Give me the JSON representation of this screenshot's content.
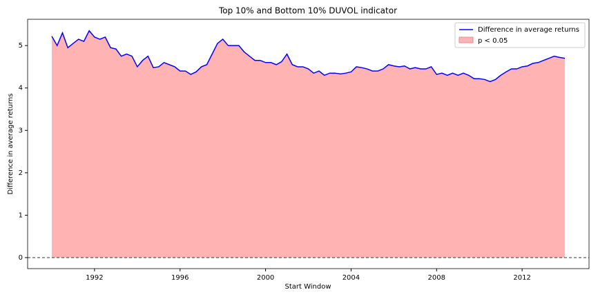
{
  "chart_data": {
    "type": "area_line",
    "title": "Top 10% and Bottom 10% DUVOL indicator",
    "x_label": "Start Window",
    "y_label": "Difference in average returns",
    "x": [
      1990.0,
      1990.25,
      1990.5,
      1990.75,
      1991.0,
      1991.25,
      1991.5,
      1991.75,
      1992.0,
      1992.25,
      1992.5,
      1992.75,
      1993.0,
      1993.25,
      1993.5,
      1993.75,
      1994.0,
      1994.25,
      1994.5,
      1994.75,
      1995.0,
      1995.25,
      1995.5,
      1995.75,
      1996.0,
      1996.25,
      1996.5,
      1996.75,
      1997.0,
      1997.25,
      1997.5,
      1997.75,
      1998.0,
      1998.25,
      1998.5,
      1998.75,
      1999.0,
      1999.25,
      1999.5,
      1999.75,
      2000.0,
      2000.25,
      2000.5,
      2000.75,
      2001.0,
      2001.25,
      2001.5,
      2001.75,
      2002.0,
      2002.25,
      2002.5,
      2002.75,
      2003.0,
      2003.25,
      2003.5,
      2003.75,
      2004.0,
      2004.25,
      2004.5,
      2004.75,
      2005.0,
      2005.25,
      2005.5,
      2005.75,
      2006.0,
      2006.25,
      2006.5,
      2006.75,
      2007.0,
      2007.25,
      2007.5,
      2007.75,
      2008.0,
      2008.25,
      2008.5,
      2008.75,
      2009.0,
      2009.25,
      2009.5,
      2009.75,
      2010.0,
      2010.25,
      2010.5,
      2010.75,
      2011.0,
      2011.25,
      2011.5,
      2011.75,
      2012.0,
      2012.25,
      2012.5,
      2012.75,
      2013.0,
      2013.25,
      2013.5,
      2013.75,
      2014.0
    ],
    "series": [
      {
        "name": "Difference in average returns",
        "color": "#0000ff",
        "values": [
          5.22,
          5.0,
          5.3,
          4.95,
          5.05,
          5.15,
          5.1,
          5.35,
          5.2,
          5.15,
          5.2,
          4.95,
          4.92,
          4.75,
          4.8,
          4.75,
          4.5,
          4.65,
          4.75,
          4.48,
          4.5,
          4.6,
          4.55,
          4.5,
          4.4,
          4.4,
          4.32,
          4.38,
          4.5,
          4.55,
          4.8,
          5.05,
          5.15,
          5.0,
          5.0,
          5.0,
          4.85,
          4.75,
          4.65,
          4.65,
          4.6,
          4.6,
          4.55,
          4.62,
          4.8,
          4.55,
          4.5,
          4.5,
          4.45,
          4.35,
          4.4,
          4.3,
          4.35,
          4.35,
          4.33,
          4.35,
          4.38,
          4.5,
          4.48,
          4.45,
          4.4,
          4.4,
          4.45,
          4.55,
          4.52,
          4.5,
          4.52,
          4.45,
          4.48,
          4.45,
          4.45,
          4.5,
          4.32,
          4.35,
          4.3,
          4.35,
          4.3,
          4.35,
          4.3,
          4.22,
          4.22,
          4.2,
          4.15,
          4.2,
          4.3,
          4.38,
          4.45,
          4.45,
          4.5,
          4.52,
          4.58,
          4.6,
          4.65,
          4.7,
          4.75,
          4.72,
          4.7
        ]
      }
    ],
    "fill": {
      "name": "p < 0.05",
      "color": "#ffb3b3"
    },
    "hline": {
      "y": 0,
      "color": "#333333"
    },
    "xlim": [
      1988.87,
      2015.13
    ],
    "xticks": [
      1992,
      1996,
      2000,
      2004,
      2008,
      2012
    ],
    "ylim": [
      -0.26,
      5.62
    ],
    "yticks": [
      0,
      1,
      2,
      3,
      4,
      5
    ],
    "legend": "upper right"
  }
}
